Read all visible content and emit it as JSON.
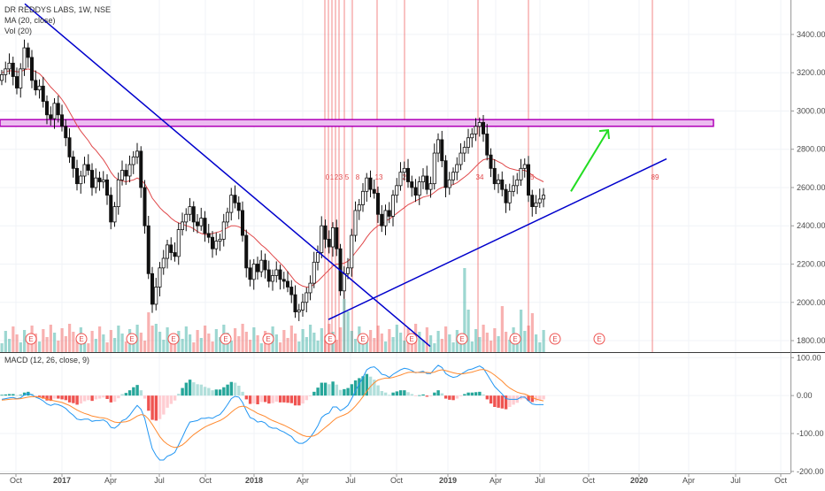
{
  "legend": {
    "symbol": "DR REDDYS LABS, 1W, NSE",
    "ma": "MA (20, close)",
    "vol": "Vol (20)",
    "macd": "MACD (12, 26, close, 9)"
  },
  "colors": {
    "up": "#26a69a",
    "down": "#ef5350",
    "ma": "#e0484a",
    "trendline": "#0000cc",
    "resistance_fill": "#ecbcf0",
    "resistance_stroke": "#b000b8",
    "arrow": "#22dd22",
    "macd_line": "#2196f3",
    "signal_line": "#ff8a30",
    "fib_line": "#f06060"
  },
  "fib_labels": [
    "0",
    "1",
    "2",
    "3",
    "5",
    "8",
    "13",
    "21",
    "34",
    "55",
    "89"
  ],
  "earnings_marker": "E",
  "chart_data": [
    {
      "type": "candlestick",
      "title": "DR REDDYS LABS, 1W, NSE",
      "x_ticks": [
        "Oct",
        "2017",
        "Apr",
        "Jul",
        "Oct",
        "2018",
        "Apr",
        "Jul",
        "Oct",
        "2019",
        "Apr",
        "Jul",
        "Oct",
        "2020",
        "Apr",
        "Jul",
        "Oct"
      ],
      "y_ticks": [
        "3400.00",
        "3200.00",
        "3000.00",
        "2800.00",
        "2600.00",
        "2400.00",
        "2200.00",
        "2000.00",
        "1800.00"
      ],
      "ylim": [
        1740,
        3580
      ],
      "resistance_zone": [
        2920,
        2955
      ],
      "trendlines": [
        {
          "name": "descending",
          "from": [
            "2016-09",
            3560
          ],
          "to": [
            "2018-09",
            1770
          ]
        },
        {
          "name": "ascending",
          "from": [
            "2018-05",
            1910
          ],
          "to": [
            "2019-12",
            2750
          ]
        }
      ],
      "projection_arrow": {
        "from": [
          "2019-09",
          2580
        ],
        "to": [
          "2019-11",
          2900
        ]
      },
      "weekly_closes": [
        3190,
        3220,
        3250,
        3180,
        3120,
        3220,
        3330,
        3280,
        3160,
        3110,
        3130,
        3050,
        2980,
        2960,
        3040,
        2980,
        2920,
        2860,
        2760,
        2700,
        2620,
        2660,
        2720,
        2690,
        2600,
        2650,
        2630,
        2640,
        2560,
        2420,
        2500,
        2640,
        2690,
        2660,
        2720,
        2760,
        2790,
        2600,
        2400,
        2150,
        1990,
        2080,
        2180,
        2230,
        2300,
        2260,
        2240,
        2380,
        2420,
        2460,
        2500,
        2420,
        2400,
        2440,
        2360,
        2340,
        2280,
        2320,
        2330,
        2420,
        2470,
        2560,
        2520,
        2480,
        2350,
        2180,
        2120,
        2200,
        2160,
        2220,
        2170,
        2110,
        2140,
        2170,
        2120,
        2110,
        2080,
        2040,
        1950,
        1960,
        2000,
        2050,
        2100,
        2210,
        2260,
        2400,
        2330,
        2290,
        2390,
        2280,
        2060,
        2150,
        2180,
        2350,
        2480,
        2510,
        2580,
        2650,
        2590,
        2570,
        2460,
        2400,
        2480,
        2450,
        2560,
        2610,
        2680,
        2700,
        2630,
        2600,
        2560,
        2630,
        2660,
        2590,
        2620,
        2780,
        2850,
        2740,
        2600,
        2640,
        2680,
        2720,
        2780,
        2810,
        2860,
        2880,
        2920,
        2940,
        2880,
        2770,
        2700,
        2620,
        2640,
        2590,
        2520,
        2580,
        2610,
        2640,
        2700,
        2720,
        2560,
        2500,
        2520,
        2540,
        2560
      ],
      "ma20": [
        3200,
        3205,
        3210,
        3210,
        3205,
        3205,
        3215,
        3220,
        3215,
        3205,
        3195,
        3175,
        3150,
        3125,
        3105,
        3085,
        3060,
        3030,
        2995,
        2960,
        2925,
        2895,
        2870,
        2845,
        2815,
        2795,
        2770,
        2745,
        2715,
        2680,
        2655,
        2640,
        2635,
        2630,
        2635,
        2640,
        2650,
        2640,
        2620,
        2585,
        2545,
        2520,
        2495,
        2475,
        2460,
        2440,
        2425,
        2415,
        2410,
        2400,
        2395,
        2385,
        2370,
        2360,
        2355,
        2355,
        2360,
        2365,
        2370,
        2380,
        2390,
        2400,
        2400,
        2395,
        2385,
        2370,
        2355,
        2340,
        2320,
        2300,
        2285,
        2265,
        2245,
        2225,
        2205,
        2185,
        2160,
        2135,
        2110,
        2095,
        2085,
        2080,
        2080,
        2095,
        2110,
        2130,
        2150,
        2170,
        2190,
        2200,
        2200,
        2205,
        2215,
        2235,
        2260,
        2285,
        2310,
        2340,
        2365,
        2385,
        2400,
        2410,
        2425,
        2435,
        2450,
        2465,
        2480,
        2495,
        2510,
        2520,
        2530,
        2540,
        2550,
        2555,
        2560,
        2575,
        2590,
        2600,
        2605,
        2610,
        2615,
        2625,
        2640,
        2655,
        2670,
        2690,
        2710,
        2730,
        2745,
        2750,
        2750,
        2745,
        2735,
        2725,
        2710,
        2700,
        2695,
        2690,
        2690,
        2690,
        2680,
        2665,
        2650,
        2640,
        2630
      ]
    },
    {
      "type": "histogram",
      "title": "MACD (12, 26, close, 9)",
      "y_ticks": [
        "100.00",
        "0.00",
        "-100.00",
        "-200.00"
      ],
      "ylim": [
        -205,
        110
      ],
      "macd_line": [
        -10,
        -8,
        -6,
        -5,
        -8,
        -6,
        2,
        6,
        2,
        -4,
        -8,
        -14,
        -22,
        -26,
        -22,
        -24,
        -28,
        -34,
        -44,
        -52,
        -62,
        -64,
        -62,
        -62,
        -68,
        -66,
        -66,
        -64,
        -70,
        -84,
        -86,
        -78,
        -66,
        -62,
        -52,
        -38,
        -26,
        -36,
        -60,
        -102,
        -140,
        -158,
        -170,
        -170,
        -160,
        -156,
        -150,
        -130,
        -110,
        -88,
        -70,
        -68,
        -66,
        -60,
        -60,
        -58,
        -60,
        -54,
        -50,
        -38,
        -24,
        -8,
        -2,
        -4,
        -18,
        -40,
        -58,
        -62,
        -70,
        -68,
        -72,
        -82,
        -86,
        -86,
        -92,
        -96,
        -102,
        -108,
        -120,
        -126,
        -126,
        -120,
        -110,
        -96,
        -80,
        -58,
        -50,
        -46,
        -30,
        -30,
        -40,
        -34,
        -26,
        -8,
        12,
        30,
        48,
        68,
        74,
        76,
        68,
        56,
        54,
        48,
        56,
        62,
        68,
        72,
        70,
        66,
        60,
        62,
        64,
        58,
        58,
        70,
        80,
        74,
        58,
        52,
        48,
        50,
        56,
        62,
        68,
        70,
        74,
        78,
        72,
        56,
        40,
        24,
        14,
        4,
        -8,
        -10,
        -10,
        -10,
        -4,
        -4,
        -14,
        -22,
        -24,
        -24,
        -24
      ],
      "signal_line": [
        -12,
        -11,
        -10,
        -9,
        -9,
        -8,
        -6,
        -4,
        -3,
        -3,
        -4,
        -6,
        -9,
        -12,
        -14,
        -16,
        -18,
        -22,
        -26,
        -32,
        -38,
        -43,
        -47,
        -50,
        -54,
        -56,
        -58,
        -59,
        -61,
        -66,
        -70,
        -71,
        -70,
        -69,
        -66,
        -60,
        -54,
        -50,
        -52,
        -62,
        -76,
        -92,
        -108,
        -120,
        -128,
        -134,
        -137,
        -135,
        -130,
        -122,
        -112,
        -103,
        -96,
        -89,
        -83,
        -78,
        -74,
        -70,
        -66,
        -60,
        -53,
        -44,
        -36,
        -30,
        -28,
        -30,
        -36,
        -41,
        -47,
        -51,
        -55,
        -61,
        -66,
        -70,
        -74,
        -78,
        -83,
        -88,
        -94,
        -100,
        -105,
        -108,
        -108,
        -106,
        -101,
        -92,
        -84,
        -76,
        -67,
        -59,
        -55,
        -51,
        -46,
        -38,
        -28,
        -16,
        -3,
        11,
        24,
        34,
        41,
        44,
        46,
        46,
        48,
        51,
        54,
        58,
        61,
        62,
        61,
        61,
        61,
        61,
        60,
        62,
        66,
        68,
        66,
        63,
        60,
        58,
        57,
        58,
        60,
        62,
        65,
        68,
        69,
        66,
        61,
        54,
        46,
        38,
        28,
        20,
        14,
        9,
        6,
        4,
        0,
        -5,
        -9,
        -12,
        -14
      ]
    }
  ]
}
